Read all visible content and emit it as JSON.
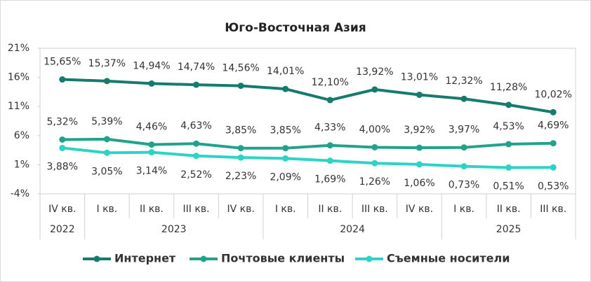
{
  "chart_data": {
    "type": "line",
    "title": "Юго-Восточная Азия",
    "categories": [
      "IV кв.",
      "I кв.",
      "II кв.",
      "III кв.",
      "IV кв.",
      "I кв.",
      "II кв.",
      "III кв.",
      "IV кв.",
      "I кв.",
      "II кв.",
      "III кв."
    ],
    "years": [
      "2022",
      "2023",
      "2023",
      "2023",
      "2023",
      "2024",
      "2024",
      "2024",
      "2024",
      "2025",
      "2025",
      "2025"
    ],
    "ylim": [
      -4,
      21
    ],
    "yticks": [
      {
        "value": -4,
        "label": "-4%"
      },
      {
        "value": 1,
        "label": "1%"
      },
      {
        "value": 6,
        "label": "6%"
      },
      {
        "value": 11,
        "label": "11%"
      },
      {
        "value": 16,
        "label": "16%"
      },
      {
        "value": 21,
        "label": "21%"
      }
    ],
    "legend": "bottom",
    "series": [
      {
        "name": "Интернет",
        "color": "#167b6c",
        "label_position": "above",
        "values": [
          15.65,
          15.37,
          14.94,
          14.74,
          14.56,
          14.01,
          12.1,
          13.92,
          13.01,
          12.32,
          11.28,
          10.02
        ],
        "value_labels": [
          "15,65%",
          "15,37%",
          "14,94%",
          "14,74%",
          "14,56%",
          "14,01%",
          "12,10%",
          "13,92%",
          "13,01%",
          "12,32%",
          "11,28%",
          "10,02%"
        ]
      },
      {
        "name": "Почтовые клиенты",
        "color": "#22a28a",
        "label_position": "above",
        "values": [
          5.32,
          5.39,
          4.46,
          4.63,
          3.85,
          3.85,
          4.33,
          4.0,
          3.92,
          3.97,
          4.53,
          4.69
        ],
        "value_labels": [
          "5,32%",
          "5,39%",
          "4,46%",
          "4,63%",
          "3,85%",
          "3,85%",
          "4,33%",
          "4,00%",
          "3,92%",
          "3,97%",
          "4,53%",
          "4,69%"
        ]
      },
      {
        "name": "Съемные носители",
        "color": "#2dd3c5",
        "label_position": "below",
        "values": [
          3.88,
          3.05,
          3.14,
          2.52,
          2.23,
          2.09,
          1.69,
          1.26,
          1.06,
          0.73,
          0.51,
          0.53
        ],
        "value_labels": [
          "3,88%",
          "3,05%",
          "3,14%",
          "2,52%",
          "2,23%",
          "2,09%",
          "1,69%",
          "1,26%",
          "1,06%",
          "0,73%",
          "0,51%",
          "0,53%"
        ]
      }
    ]
  }
}
